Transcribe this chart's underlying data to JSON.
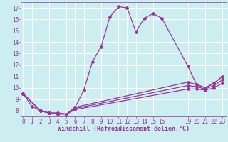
{
  "xlabel": "Windchill (Refroidissement éolien,°C)",
  "bg_color": "#cceef0",
  "grid_color": "#ffffff",
  "line_color": "#993399",
  "line1_x": [
    0,
    1,
    2,
    3,
    4,
    5,
    6,
    7,
    8,
    9,
    10,
    11,
    12,
    13,
    14,
    15,
    16,
    19,
    20,
    21,
    22,
    23
  ],
  "line1_y": [
    9.5,
    8.4,
    8.0,
    7.8,
    7.8,
    7.7,
    8.3,
    9.8,
    12.3,
    13.6,
    16.2,
    17.1,
    17.0,
    14.9,
    16.1,
    16.5,
    16.1,
    11.9,
    10.3,
    10.0,
    10.4,
    11.0
  ],
  "line2_x": [
    0,
    2,
    3,
    4,
    5,
    6,
    19,
    20,
    21,
    22,
    23
  ],
  "line2_y": [
    9.5,
    8.0,
    7.8,
    7.8,
    7.7,
    8.3,
    10.5,
    10.3,
    10.0,
    10.4,
    11.0
  ],
  "line3_x": [
    0,
    2,
    3,
    4,
    5,
    6,
    19,
    20,
    21,
    22,
    23
  ],
  "line3_y": [
    9.5,
    8.0,
    7.8,
    7.75,
    7.7,
    8.2,
    10.2,
    10.1,
    9.9,
    10.2,
    10.7
  ],
  "line4_x": [
    0,
    2,
    3,
    4,
    5,
    6,
    19,
    20,
    21,
    22,
    23
  ],
  "line4_y": [
    9.5,
    8.0,
    7.8,
    7.7,
    7.7,
    8.1,
    9.9,
    9.9,
    9.8,
    10.0,
    10.4
  ],
  "xlim": [
    -0.3,
    23.5
  ],
  "ylim": [
    7.5,
    17.5
  ],
  "yticks": [
    8,
    9,
    10,
    11,
    12,
    13,
    14,
    15,
    16,
    17
  ],
  "xticks": [
    0,
    1,
    2,
    3,
    4,
    5,
    6,
    7,
    8,
    9,
    10,
    11,
    12,
    13,
    14,
    15,
    16,
    19,
    20,
    21,
    22,
    23
  ],
  "xlabel_fontsize": 6.0,
  "tick_fontsize": 5.5
}
